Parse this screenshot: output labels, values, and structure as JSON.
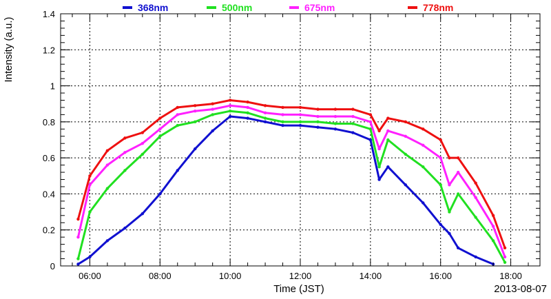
{
  "chart_data": {
    "type": "scatter",
    "xlabel": "Time (JST)",
    "ylabel": "Intensity (a.u.)",
    "date_label": "2013-08-07",
    "xlim": [
      "05:10",
      "18:50"
    ],
    "ylim": [
      0,
      1.4
    ],
    "x_ticks": [
      "06:00",
      "08:00",
      "10:00",
      "12:00",
      "14:00",
      "16:00",
      "18:00"
    ],
    "y_ticks": [
      "0",
      "0.2",
      "0.4",
      "0.6",
      "0.8",
      "1",
      "1.2",
      "1.4"
    ],
    "grid": true,
    "legend_position": "top",
    "series": [
      {
        "name": "368nm",
        "color": "#1010d0",
        "x": [
          "05:40",
          "06:00",
          "06:30",
          "07:00",
          "07:30",
          "08:00",
          "08:30",
          "09:00",
          "09:30",
          "10:00",
          "10:30",
          "11:00",
          "11:30",
          "12:00",
          "12:30",
          "13:00",
          "13:30",
          "14:00",
          "14:15",
          "14:30",
          "15:00",
          "15:30",
          "16:00",
          "16:15",
          "16:30",
          "17:00",
          "17:30"
        ],
        "y": [
          0.01,
          0.05,
          0.14,
          0.21,
          0.29,
          0.4,
          0.53,
          0.65,
          0.75,
          0.83,
          0.82,
          0.8,
          0.78,
          0.78,
          0.77,
          0.76,
          0.74,
          0.7,
          0.48,
          0.55,
          0.45,
          0.35,
          0.23,
          0.18,
          0.1,
          0.05,
          0.01
        ]
      },
      {
        "name": "500nm",
        "color": "#20e020",
        "x": [
          "05:40",
          "06:00",
          "06:30",
          "07:00",
          "07:30",
          "08:00",
          "08:30",
          "09:00",
          "09:30",
          "10:00",
          "10:30",
          "11:00",
          "11:30",
          "12:00",
          "12:30",
          "13:00",
          "13:30",
          "14:00",
          "14:15",
          "14:30",
          "15:00",
          "15:30",
          "16:00",
          "16:15",
          "16:30",
          "17:00",
          "17:30",
          "17:50"
        ],
        "y": [
          0.04,
          0.3,
          0.43,
          0.53,
          0.62,
          0.72,
          0.78,
          0.8,
          0.84,
          0.86,
          0.85,
          0.82,
          0.8,
          0.8,
          0.8,
          0.79,
          0.79,
          0.76,
          0.55,
          0.7,
          0.62,
          0.55,
          0.45,
          0.3,
          0.4,
          0.27,
          0.14,
          0.02
        ]
      },
      {
        "name": "675nm",
        "color": "#ff20ff",
        "x": [
          "05:40",
          "06:00",
          "06:30",
          "07:00",
          "07:30",
          "08:00",
          "08:30",
          "09:00",
          "09:30",
          "10:00",
          "10:30",
          "11:00",
          "11:30",
          "12:00",
          "12:30",
          "13:00",
          "13:30",
          "14:00",
          "14:15",
          "14:30",
          "15:00",
          "15:30",
          "16:00",
          "16:15",
          "16:30",
          "17:00",
          "17:30",
          "17:50"
        ],
        "y": [
          0.16,
          0.45,
          0.56,
          0.63,
          0.68,
          0.76,
          0.84,
          0.86,
          0.87,
          0.89,
          0.88,
          0.85,
          0.84,
          0.84,
          0.83,
          0.83,
          0.83,
          0.8,
          0.65,
          0.75,
          0.72,
          0.67,
          0.6,
          0.45,
          0.52,
          0.38,
          0.22,
          0.05
        ]
      },
      {
        "name": "778nm",
        "color": "#ee1010",
        "x": [
          "05:40",
          "06:00",
          "06:30",
          "07:00",
          "07:30",
          "08:00",
          "08:30",
          "09:00",
          "09:30",
          "10:00",
          "10:30",
          "11:00",
          "11:30",
          "12:00",
          "12:30",
          "13:00",
          "13:30",
          "14:00",
          "14:15",
          "14:30",
          "15:00",
          "15:30",
          "16:00",
          "16:15",
          "16:30",
          "17:00",
          "17:30",
          "17:50"
        ],
        "y": [
          0.26,
          0.5,
          0.64,
          0.71,
          0.74,
          0.82,
          0.88,
          0.89,
          0.9,
          0.92,
          0.91,
          0.89,
          0.88,
          0.88,
          0.87,
          0.87,
          0.87,
          0.84,
          0.75,
          0.82,
          0.8,
          0.76,
          0.7,
          0.6,
          0.6,
          0.46,
          0.28,
          0.1
        ]
      }
    ]
  }
}
